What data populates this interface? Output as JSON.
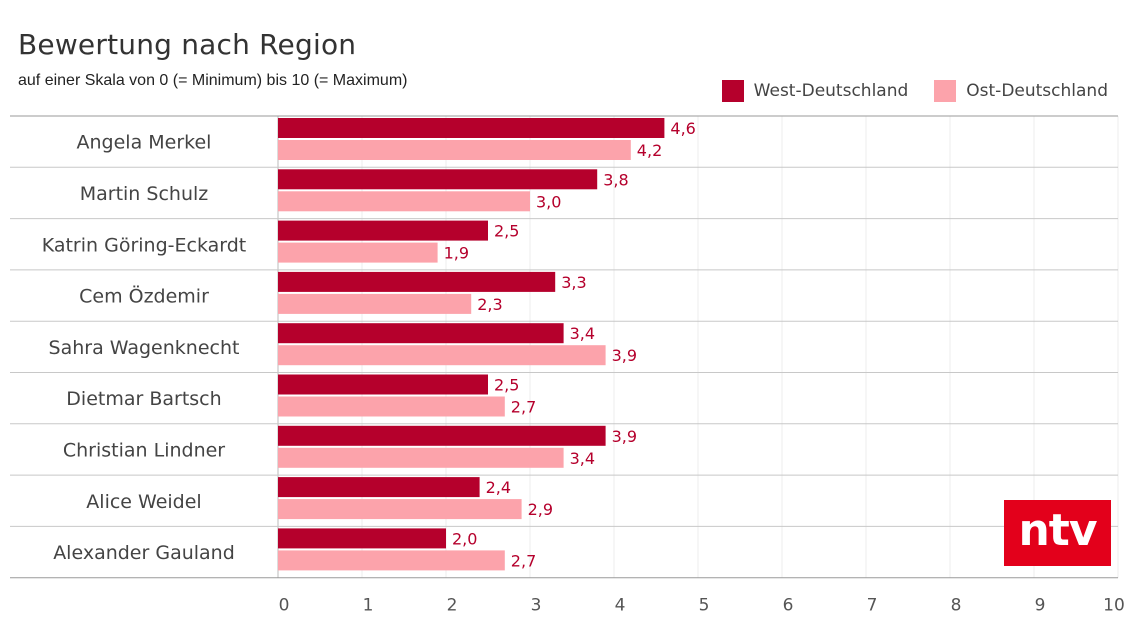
{
  "chart_data": {
    "type": "bar",
    "orientation": "horizontal",
    "title": "Bewertung nach Region",
    "subtitle": "auf einer Skala von 0 (= Minimum) bis 10 (= Maximum)",
    "categories": [
      "Angela Merkel",
      "Martin Schulz",
      "Katrin Göring-Eckardt",
      "Cem Özdemir",
      "Sahra Wagenknecht",
      "Dietmar Bartsch",
      "Christian Lindner",
      "Alice Weidel",
      "Alexander Gauland"
    ],
    "series": [
      {
        "name": "West-Deutschland",
        "color": "#b5002c",
        "values": [
          4.6,
          3.8,
          2.5,
          3.3,
          3.4,
          2.5,
          3.9,
          2.4,
          2.0
        ],
        "labels": [
          "4,6",
          "3,8",
          "2,5",
          "3,3",
          "3,4",
          "2,5",
          "3,9",
          "2,4",
          "2,0"
        ]
      },
      {
        "name": "Ost-Deutschland",
        "color": "#fca3ab",
        "values": [
          4.2,
          3.0,
          1.9,
          2.3,
          3.9,
          2.7,
          3.4,
          2.9,
          2.7
        ],
        "labels": [
          "4,2",
          "3,0",
          "1,9",
          "2,3",
          "3,9",
          "2,7",
          "3,4",
          "2,9",
          "2,7"
        ]
      }
    ],
    "xlim": [
      0,
      10
    ],
    "xticks": [
      "0",
      "1",
      "2",
      "3",
      "4",
      "5",
      "6",
      "7",
      "8",
      "9",
      "10"
    ],
    "value_label_color": "#b5002c",
    "grid": true,
    "legend": "top-right"
  },
  "logo": {
    "text": "ntv",
    "color": "#e3001b"
  }
}
